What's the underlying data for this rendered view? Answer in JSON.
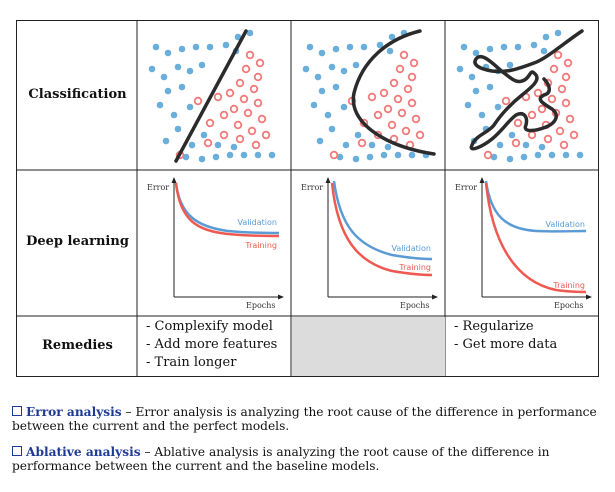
{
  "table": {
    "rows": [
      {
        "label": "Classification"
      },
      {
        "label": "Deep learning"
      },
      {
        "label": "Remedies"
      }
    ],
    "curves": {
      "y_axis_label": "Error",
      "x_axis_label": "Epochs",
      "validation_label": "Validation",
      "training_label": "Training",
      "validation_color": "#5b9bd5",
      "training_color": "#ee5a52"
    },
    "remedies": {
      "underfit": [
        "- Complexify model",
        "- Add more features",
        "- Train longer"
      ],
      "overfit": [
        "- Regularize",
        "- Get more data"
      ]
    },
    "colors": {
      "blue_dot": "#6aaedc",
      "red_dot": "#ef7b7b",
      "boundary": "#2b2b2b"
    }
  },
  "definitions": [
    {
      "term": "Error analysis",
      "text": "– Error analysis is analyzing the root cause of the difference in performance between the current and the perfect models."
    },
    {
      "term": "Ablative analysis",
      "text": "– Ablative analysis is analyzing the root cause of the difference in performance between the current and the baseline models."
    }
  ]
}
